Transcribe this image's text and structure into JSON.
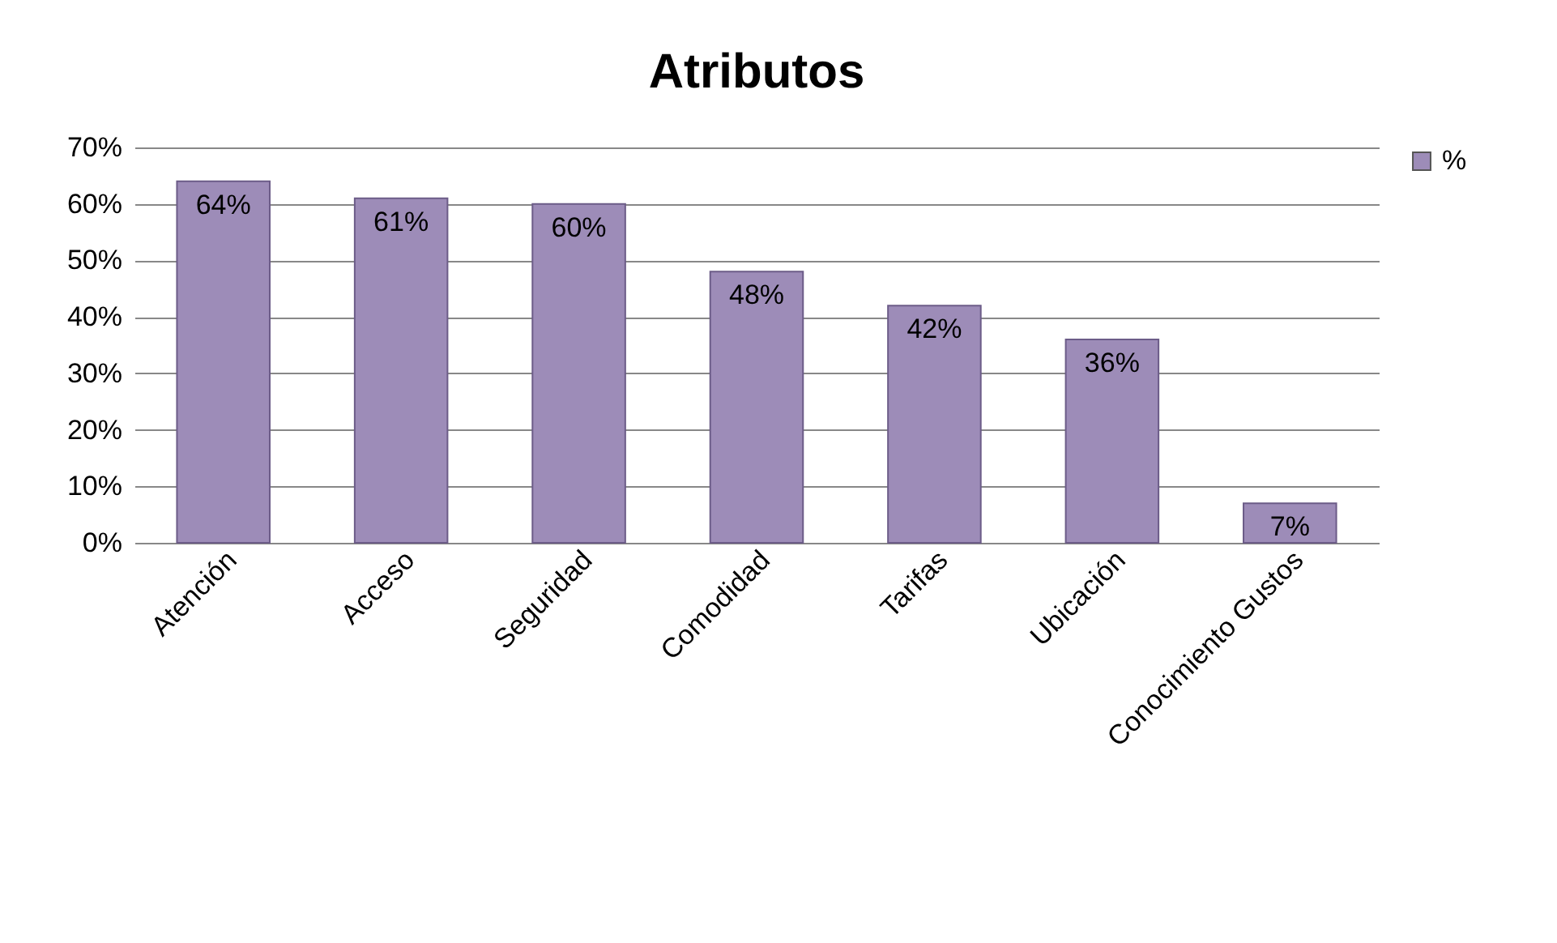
{
  "chart_data": {
    "type": "bar",
    "title": "Atributos",
    "categories": [
      "Atención",
      "Acceso",
      "Seguridad",
      "Comodidad",
      "Tarifas",
      "Ubicación",
      "Conocimiento Gustos"
    ],
    "series": [
      {
        "name": "%",
        "color": "#9d8cb8",
        "values": [
          64,
          61,
          60,
          48,
          42,
          36,
          7
        ],
        "value_labels": [
          "64%",
          "61%",
          "60%",
          "48%",
          "42%",
          "36%",
          "7%"
        ]
      }
    ],
    "ylim": [
      0,
      70
    ],
    "yticks": [
      {
        "value": 0,
        "label": "0%"
      },
      {
        "value": 10,
        "label": "10%"
      },
      {
        "value": 20,
        "label": "20%"
      },
      {
        "value": 30,
        "label": "30%"
      },
      {
        "value": 40,
        "label": "40%"
      },
      {
        "value": 50,
        "label": "50%"
      },
      {
        "value": 60,
        "label": "60%"
      },
      {
        "value": 70,
        "label": "70%"
      }
    ],
    "grid": "y",
    "legend": "right"
  }
}
